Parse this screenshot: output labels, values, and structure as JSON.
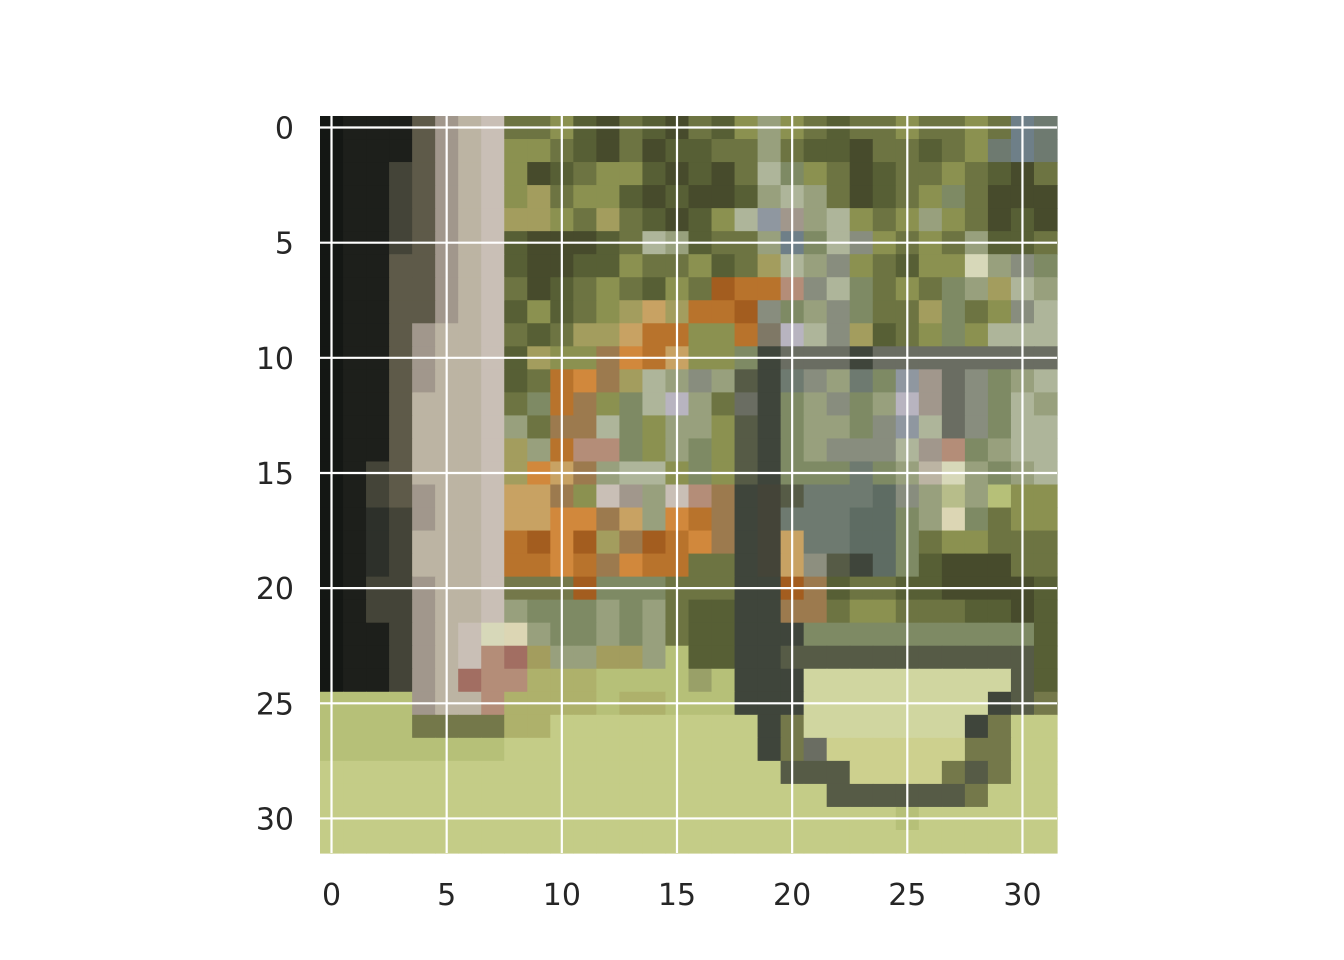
{
  "image": {
    "rows": 32,
    "cols": 32,
    "palette": {
      "A": "#141714",
      "B": "#1d1f1b",
      "C": "#2d302a",
      "D": "#444438",
      "E": "#5e5a49",
      "F": "#7f7866",
      "G": "#a1978c",
      "H": "#bcb4a3",
      "I": "#474b2c",
      "J": "#575f35",
      "K": "#6d7442",
      "L": "#8b9150",
      "M": "#a39d5e",
      "N": "#7e8a64",
      "O": "#98a07d",
      "P": "#aeb59a",
      "Q": "#888d7e",
      "R": "#6e7a70",
      "S": "#5e6c63",
      "T": "#b8b4c0",
      "U": "#8f97a0",
      "V": "#6e7f88",
      "W": "#b8732c",
      "X": "#a35d1f",
      "Y": "#d1883c",
      "Z": "#c8a263",
      "a": "#9c7a4e",
      "b": "#b48d78",
      "c": "#a26e62",
      "d": "#c9bfb6",
      "e": "#dcd6b4",
      "f": "#b7bd8a",
      "g": "#c4cc87",
      "h": "#aeb16b",
      "i": "#d0d6a0",
      "j": "#cdd08e",
      "k": "#b6c078",
      "l": "#99a068",
      "m": "#74784a",
      "n": "#565b46",
      "o": "#3f453b",
      "p": "#6a6d62",
      "q": "#8d8f7f",
      "r": "#d7d8b9"
    },
    "pixels": [
      "ABBBEGHdKKLJIKJIKJLOLKJKKLKKLKVR",
      "ABBBEGHdLLKJIKIJJKKOKJJIKKJKLRVR",
      "ABBDEGHdLIJKLLJIJIKPNLKIJKKLKJIK",
      "ABBDEGHdLMKLLJIJIIJOPOKIJKLNKIII",
      "ABBDEGHdMMLKMKJIJLPUGOPLKLOLKIJI",
      "ABBDEGHdJIIIJKPOJKKOVNPQLKLKOJJK",
      "ABBEEGHdJIIJJLKKLJKMPOQLKJLLrOQN",
      "ABBEEGHdKIJKLKJLKXWWbQPNKLKNOMPO",
      "ABBEEGHdJLJKLMZMWWXQNOQNKKMNKLQP",
      "ABBEGHHdKJKMMZWWLLWFTPQMJKLNLPPP",
      "ABBEGHHdJMLLaYWZLLNopppopppppppp",
      "ABBEGHHdJKWYaMPOQOnoRQORNUGpQNOP",
      "ABBEHHHdKNWaLNPTOKpoNOQNOTGpQNPO",
      "ABBEHHHdOKaaPNLOOLnoNOONQUPpQNPP",
      "ABBEHHHdMOWbbNLONLnoNOQQQPGbNOPP",
      "ABDEHHHdMYZaOPPLNLnoNNNRNOHrONOP",
      "ABDEGHHdZZaLdGOdbaoDnRRRSQOfOkLL",
      "ABCDGHHdZZYYaZOYWaoDRRRSSNOeNKLL",
      "ABCDHHHdWXYXMaXWYaoDZRRSSNKLLKKK",
      "ABCDHHHdWWYWaYWWKKoDZqnoSNJIIIKK",
      "ABDDGHHdmmmXNNNKKKooXaJKKJJIIIIJ",
      "ABDDGHHdONNNONOKJJooaaKLLKKKJJIJ",
      "ABBDGHdreONNONOKJJoooNNNNNNNNNNJ",
      "ABBDGHdbcMOOMMOkJJoonnnnnnnnnnnJ",
      "ABBDGHcbbhhhkkkklkoooiiiiiiiiinJ",
      "kkkkGHHbhhhhkhhkkkoooiiiiiiiionm",
      "kkkkmmmmhhgggggggggomiiiiiiiomgg",
      "kkkkkkkkgggggggggggompjjjjjjmmgg",
      "ggggggggggggggggggggnnnjjjjmnmgg",
      "ggggggggggggggggggggggnnnnnnmggg",
      "gggggggggggggggggggggggggkgggggg",
      "gggggggggggggggggggggggggggggggg"
    ]
  },
  "x_ticks": [
    "0",
    "5",
    "10",
    "15",
    "20",
    "25",
    "30"
  ],
  "y_ticks": [
    "0",
    "5",
    "10",
    "15",
    "20",
    "25",
    "30"
  ]
}
